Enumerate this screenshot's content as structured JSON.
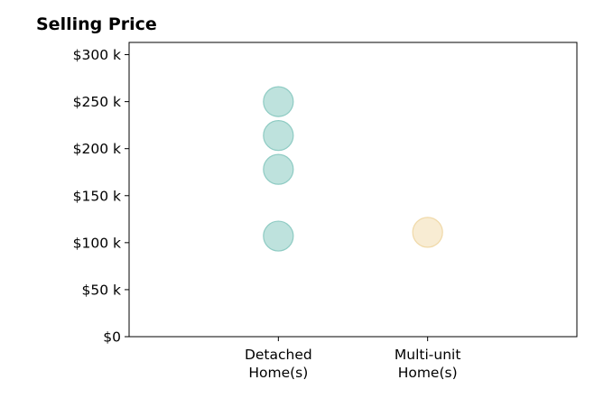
{
  "chart_data": {
    "type": "scatter",
    "title": "Selling Price",
    "xlabel": "",
    "ylabel": "",
    "categories": [
      "Detached\nHome(s)",
      "Multi-unit\nHome(s)"
    ],
    "y_ticks": [
      0,
      50000,
      100000,
      150000,
      200000,
      250000,
      300000
    ],
    "y_tick_labels": [
      "$0",
      "$50 k",
      "$100 k",
      "$150 k",
      "$200 k",
      "$250 k",
      "$300 k"
    ],
    "ylim": [
      0,
      313000
    ],
    "xlim": [
      -1,
      2
    ],
    "grid": false,
    "series": [
      {
        "category_index": 0,
        "color": "#a8d8d2",
        "stroke": "#8ecbc3",
        "values": [
          250000,
          214000,
          178000,
          107000
        ]
      },
      {
        "category_index": 1,
        "color": "#f6e6c4",
        "stroke": "#f0d9a8",
        "values": [
          111000
        ]
      }
    ]
  }
}
